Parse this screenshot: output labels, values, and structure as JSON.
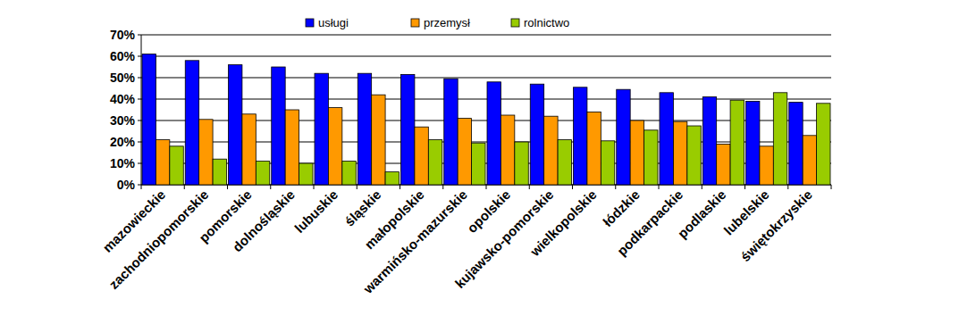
{
  "chart_data": {
    "type": "bar",
    "categories": [
      "mazowieckie",
      "zachodniopomorskie",
      "pomorskie",
      "dolnośląskie",
      "lubuskie",
      "śląskie",
      "małopolskie",
      "warmińsko-mazurskie",
      "opolskie",
      "kujawsko-pomorskie",
      "wielkopolskie",
      "łódzkie",
      "podkarpackie",
      "podlaskie",
      "lubelskie",
      "świętokrzyskie"
    ],
    "series": [
      {
        "name": "usługi",
        "color": "#0000ff",
        "values": [
          61,
          58,
          56,
          55,
          52,
          52,
          51.5,
          49.5,
          48,
          47,
          45.5,
          44.5,
          43,
          41,
          39,
          38.5
        ]
      },
      {
        "name": "przemysł",
        "color": "#ff9900",
        "values": [
          21,
          30.5,
          33,
          35,
          36,
          42,
          27,
          31,
          32.5,
          32,
          34,
          30,
          29.5,
          19,
          18,
          23
        ]
      },
      {
        "name": "rolnictwo",
        "color": "#99cc00",
        "values": [
          18,
          12,
          11,
          10,
          11,
          6,
          21,
          19.5,
          20,
          21,
          20.5,
          25.5,
          27.5,
          39.5,
          43,
          38
        ]
      }
    ],
    "ylim": [
      0,
      70
    ],
    "yticks": [
      {
        "value": 0,
        "label": "0%"
      },
      {
        "value": 10,
        "label": "10%"
      },
      {
        "value": 20,
        "label": "20%"
      },
      {
        "value": 30,
        "label": "30%"
      },
      {
        "value": 40,
        "label": "40%"
      },
      {
        "value": 50,
        "label": "50%"
      },
      {
        "value": 60,
        "label": "60%"
      },
      {
        "value": 70,
        "label": "70%"
      }
    ],
    "grid": true,
    "legend": "top"
  }
}
